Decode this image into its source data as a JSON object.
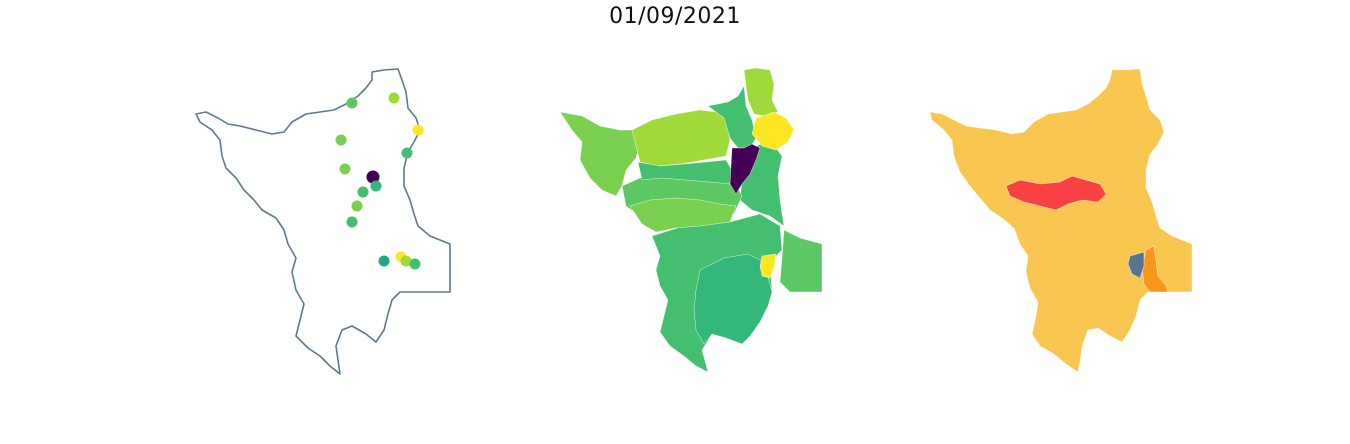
{
  "title": "01/09/2021",
  "colors": {
    "outline": "#5a7a96",
    "viridis_dark": "#440154",
    "viridis_teal": "#21a685",
    "viridis_green": "#35b779",
    "viridis_mid": "#44bf70",
    "viridis_lightgreen": "#5cc863",
    "viridis_lime": "#7ad151",
    "viridis_yellowgreen": "#9fda3a",
    "viridis_yellow": "#fde725",
    "risk_yellow": "#f9c74f",
    "risk_red": "#f94144",
    "risk_orange": "#f8961e",
    "risk_slate": "#577590"
  }
}
